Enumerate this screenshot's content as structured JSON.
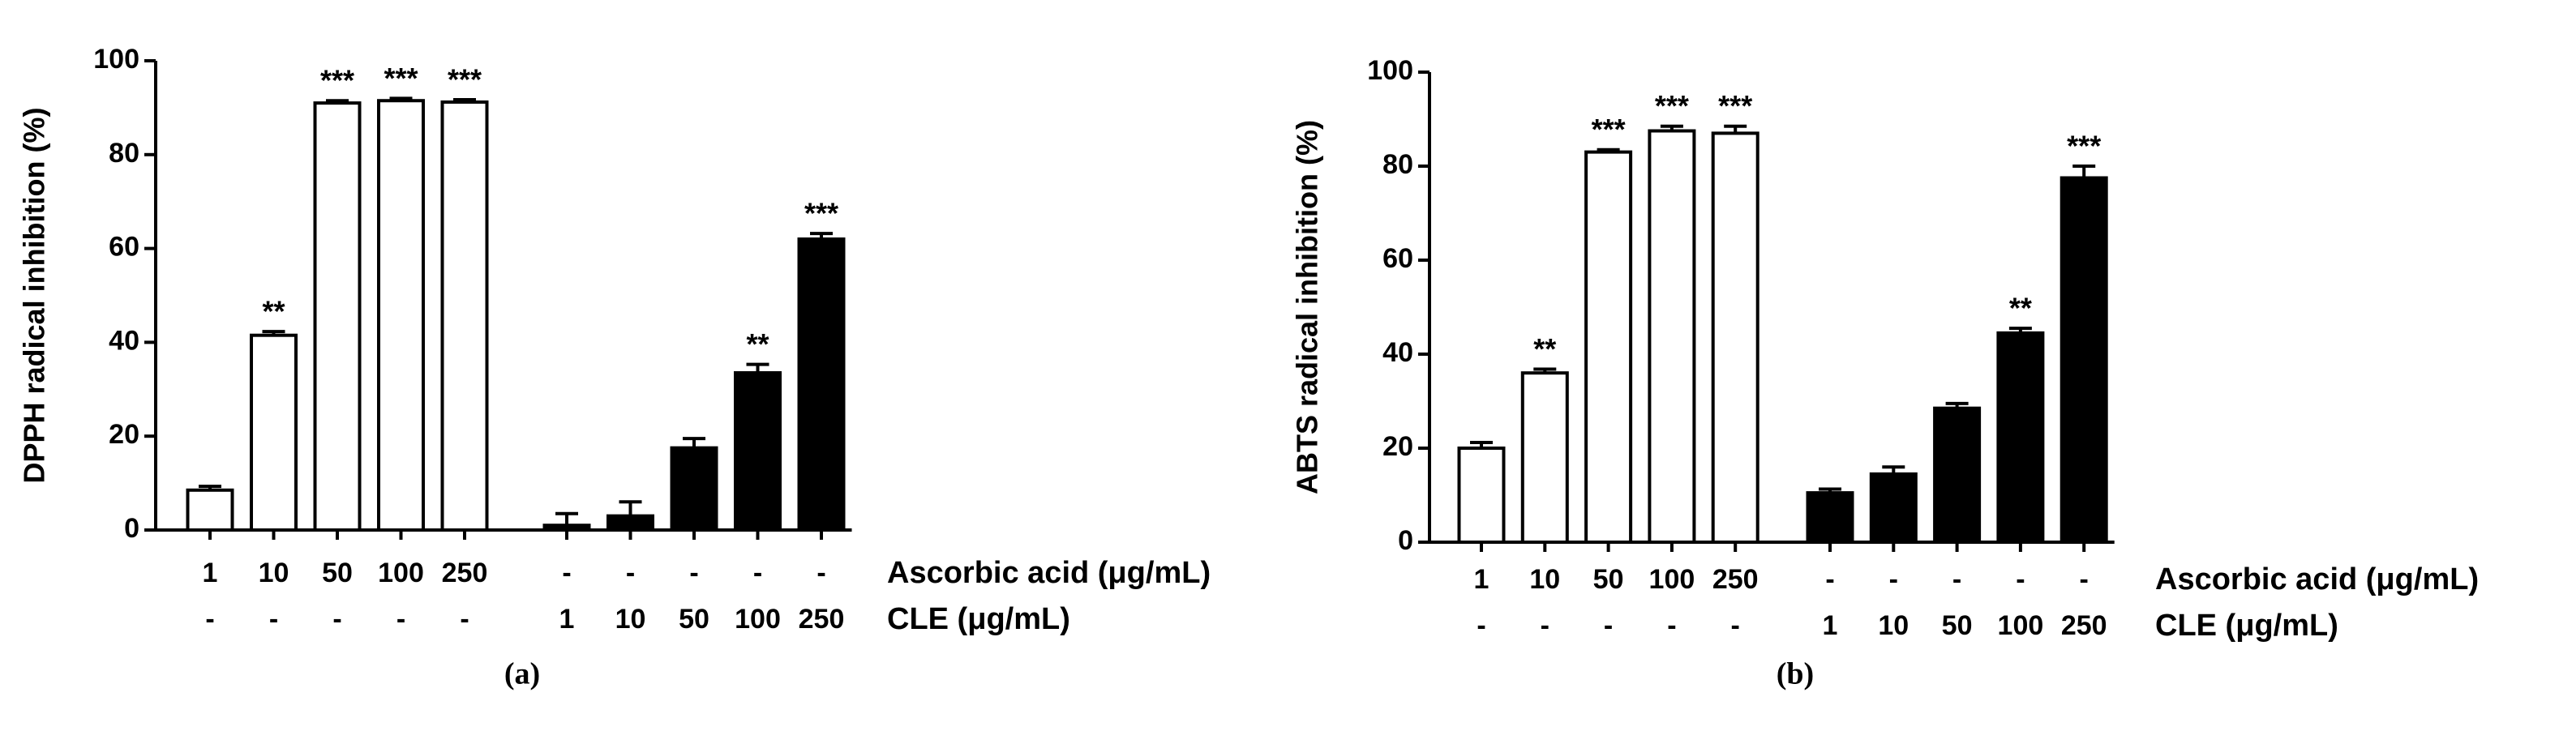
{
  "chart_data": [
    {
      "type": "bar",
      "caption": "(a)",
      "ylabel": "DPPH radical inhibition (%)",
      "ylim": [
        0,
        100
      ],
      "yticks": [
        0,
        20,
        40,
        60,
        80,
        100
      ],
      "values": [
        8.5,
        41.5,
        91,
        91.5,
        91.2,
        1,
        3,
        17.5,
        33.5,
        62
      ],
      "errors": [
        0.8,
        0.8,
        0.5,
        0.5,
        0.5,
        2.5,
        3,
        2,
        1.8,
        1.2
      ],
      "colors": [
        "#ffffff",
        "#ffffff",
        "#ffffff",
        "#ffffff",
        "#ffffff",
        "#000000",
        "#000000",
        "#000000",
        "#000000",
        "#000000"
      ],
      "annotations": [
        null,
        "**",
        "***",
        "***",
        "***",
        null,
        null,
        null,
        "**",
        "***"
      ],
      "rows": [
        {
          "label": "Ascorbic acid (μg/mL)",
          "values": [
            "1",
            "10",
            "50",
            "100",
            "250",
            "-",
            "-",
            "-",
            "-",
            "-"
          ]
        },
        {
          "label": "CLE (μg/mL)",
          "values": [
            "-",
            "-",
            "-",
            "-",
            "-",
            "1",
            "10",
            "50",
            "100",
            "250"
          ]
        }
      ]
    },
    {
      "type": "bar",
      "caption": "(b)",
      "ylabel": "ABTS radical inhibition (%)",
      "ylim": [
        0,
        100
      ],
      "yticks": [
        0,
        20,
        40,
        60,
        80,
        100
      ],
      "values": [
        20,
        36,
        83,
        87.5,
        87,
        10.5,
        14.5,
        28.5,
        44.5,
        77.5
      ],
      "errors": [
        1.2,
        0.8,
        0.5,
        1,
        1.5,
        0.8,
        1.5,
        1,
        1,
        2.5
      ],
      "colors": [
        "#ffffff",
        "#ffffff",
        "#ffffff",
        "#ffffff",
        "#ffffff",
        "#000000",
        "#000000",
        "#000000",
        "#000000",
        "#000000"
      ],
      "annotations": [
        null,
        "**",
        "***",
        "***",
        "***",
        null,
        null,
        null,
        "**",
        "***"
      ],
      "rows": [
        {
          "label": "Ascorbic acid (μg/mL)",
          "values": [
            "1",
            "10",
            "50",
            "100",
            "250",
            "-",
            "-",
            "-",
            "-",
            "-"
          ]
        },
        {
          "label": "CLE (μg/mL)",
          "values": [
            "-",
            "-",
            "-",
            "-",
            "-",
            "1",
            "10",
            "50",
            "100",
            "250"
          ]
        }
      ]
    }
  ]
}
